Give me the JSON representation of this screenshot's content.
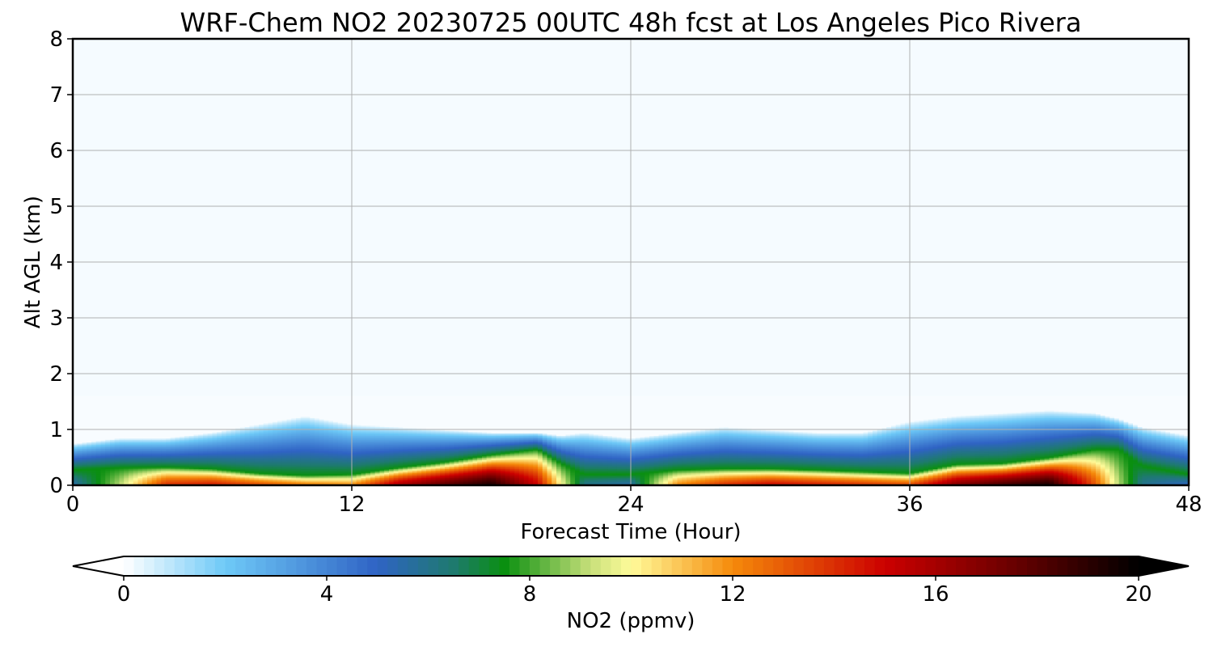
{
  "chart_data": {
    "type": "heatmap",
    "title": "WRF-Chem NO2  20230725 00UTC 48h fcst at Los Angeles Pico Rivera",
    "xlabel": "Forecast Time (Hour)",
    "ylabel": "Alt AGL (km)",
    "xlim": [
      0,
      48
    ],
    "ylim": [
      0,
      8
    ],
    "x_ticks": [
      "0",
      "12",
      "24",
      "36",
      "48"
    ],
    "y_ticks": [
      "0",
      "1",
      "2",
      "3",
      "4",
      "5",
      "6",
      "7",
      "8"
    ],
    "grid": true,
    "colorbar": {
      "label": "NO2  (ppmv)",
      "range": [
        0,
        20
      ],
      "ticks": [
        "0",
        "4",
        "8",
        "12",
        "16",
        "20"
      ],
      "extend": "both",
      "orientation": "horizontal",
      "colormap_stops": [
        {
          "value": 0,
          "color": "#ffffff"
        },
        {
          "value": 2,
          "color": "#6ec9f7"
        },
        {
          "value": 5,
          "color": "#2f63c4"
        },
        {
          "value": 6.5,
          "color": "#1e7a6e"
        },
        {
          "value": 7.5,
          "color": "#0a8f10"
        },
        {
          "value": 9.2,
          "color": "#c8e07a"
        },
        {
          "value": 10,
          "color": "#fffb9a"
        },
        {
          "value": 12,
          "color": "#f58a0a"
        },
        {
          "value": 15,
          "color": "#cc0000"
        },
        {
          "value": 17.5,
          "color": "#6a0000"
        },
        {
          "value": 20,
          "color": "#000000"
        }
      ],
      "under_color": "#ffffff",
      "over_color": "#000000"
    },
    "hours": [
      0,
      2,
      4,
      6,
      8,
      10,
      12,
      14,
      16,
      18,
      20,
      21,
      22,
      24,
      26,
      28,
      30,
      32,
      34,
      36,
      38,
      40,
      42,
      44,
      45,
      46,
      48
    ],
    "surface_no2_ppmv": [
      5.5,
      9,
      14,
      14.5,
      13.5,
      12.5,
      12,
      16,
      18,
      19.5,
      15,
      10,
      6,
      5.5,
      12,
      14,
      15,
      14.5,
      14,
      13.5,
      17,
      18.5,
      19.5,
      13,
      9,
      6,
      5
    ],
    "mixing_depth_km": [
      0.75,
      0.85,
      0.85,
      0.95,
      1.1,
      1.25,
      1.1,
      1.05,
      1.0,
      0.95,
      0.95,
      0.9,
      0.95,
      0.85,
      0.95,
      1.05,
      1.0,
      0.95,
      0.95,
      1.15,
      1.25,
      1.3,
      1.35,
      1.3,
      1.2,
      1.05,
      0.9
    ],
    "near_surface_layer_top_km": [
      0.28,
      0.32,
      0.33,
      0.3,
      0.22,
      0.18,
      0.2,
      0.32,
      0.42,
      0.55,
      0.65,
      0.4,
      0.2,
      0.2,
      0.28,
      0.3,
      0.3,
      0.28,
      0.25,
      0.22,
      0.38,
      0.4,
      0.5,
      0.65,
      0.65,
      0.35,
      0.2
    ],
    "free_troposphere_no2_ppmv": 0.1
  }
}
